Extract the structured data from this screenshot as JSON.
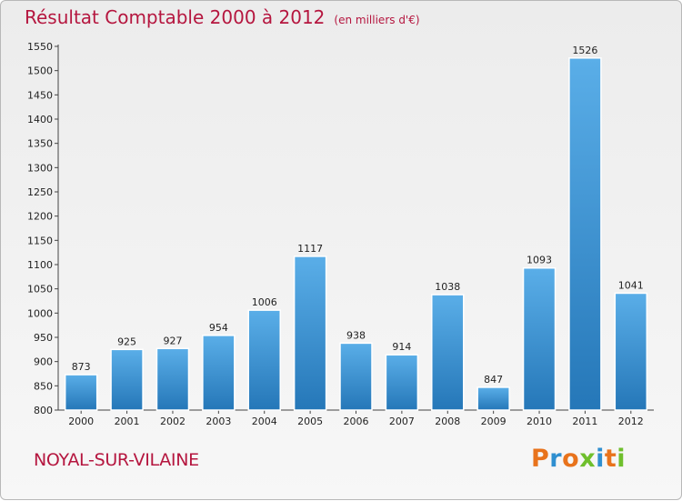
{
  "header": {
    "title": "Résultat Comptable 2000 à 2012",
    "unit": "(en milliers d'€)"
  },
  "footer": {
    "commune": "NOYAL-SUR-VILAINE",
    "logo": "Proxiti",
    "logo_colors": [
      "#e8731c",
      "#2f8fd0",
      "#e8731c",
      "#6fbf2c",
      "#2f8fd0",
      "#e8731c",
      "#6fbf2c"
    ]
  },
  "colors": {
    "bar_light": "#5aaee8",
    "bar_dark": "#2577b8",
    "title": "#b5163f"
  },
  "chart_data": {
    "type": "bar",
    "title": "Résultat Comptable 2000 à 2012",
    "subtitle": "(en milliers d'€)",
    "xlabel": "",
    "ylabel": "",
    "categories": [
      "2000",
      "2001",
      "2002",
      "2003",
      "2004",
      "2005",
      "2006",
      "2007",
      "2008",
      "2009",
      "2010",
      "2011",
      "2012"
    ],
    "values": [
      873,
      925,
      927,
      954,
      1006,
      1117,
      938,
      914,
      1038,
      847,
      1093,
      1526,
      1041
    ],
    "ylim": [
      800,
      1550
    ],
    "yticks": [
      800,
      850,
      900,
      950,
      1000,
      1050,
      1100,
      1150,
      1200,
      1250,
      1300,
      1350,
      1400,
      1450,
      1500,
      1550
    ],
    "grid": false,
    "legend": "none"
  }
}
